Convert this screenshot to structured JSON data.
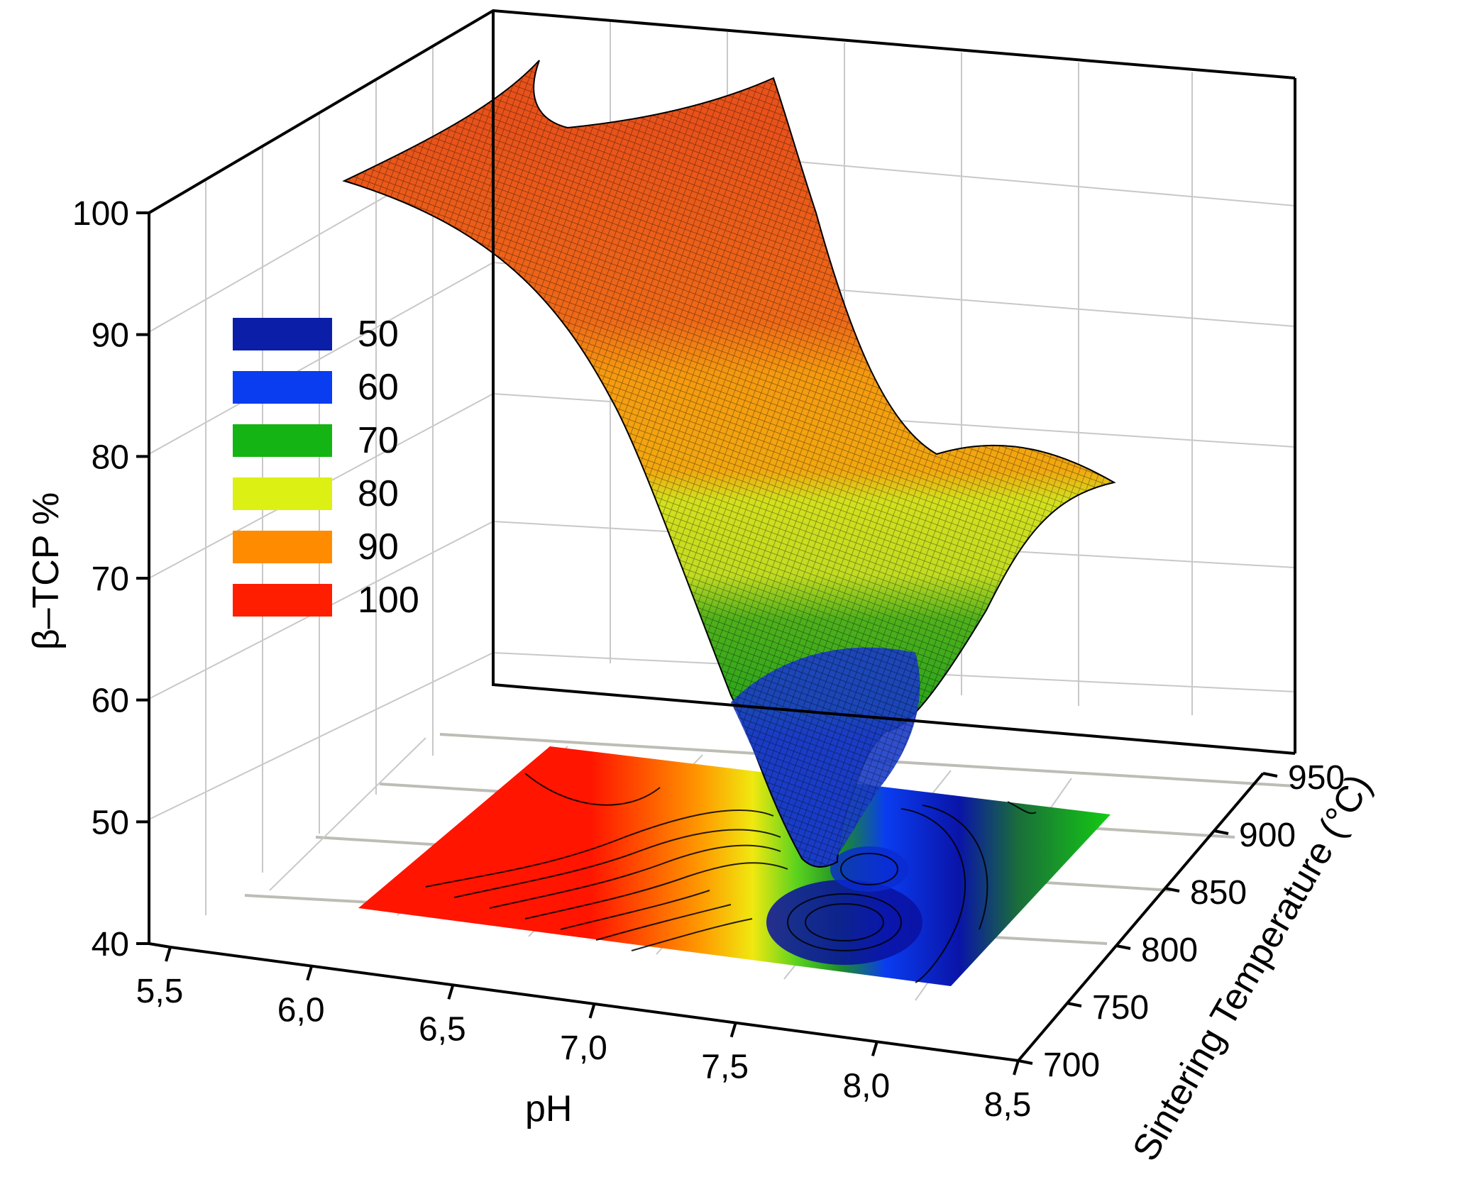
{
  "chart_data": {
    "type": "surface3d",
    "title": "",
    "xlabel": "pH",
    "ylabel": "Sintering Temperature (°C)",
    "zlabel": "β–TCP %",
    "x_ticks": [
      "5,5",
      "6,0",
      "6,5",
      "7,0",
      "7,5",
      "8,0",
      "8,5"
    ],
    "y_ticks": [
      "700",
      "750",
      "800",
      "850",
      "900",
      "950"
    ],
    "z_ticks": [
      "40",
      "50",
      "60",
      "70",
      "80",
      "90",
      "100"
    ],
    "xlim": [
      5.5,
      8.5
    ],
    "ylim": [
      700,
      950
    ],
    "zlim": [
      40,
      100
    ],
    "surface_x_range": [
      5.7,
      8.5
    ],
    "surface_y_range": [
      700,
      900
    ],
    "contour_projection_on_floor": true,
    "grid": true,
    "legend_position": "left",
    "legend": [
      {
        "label": "50",
        "color": "#0a1ea8"
      },
      {
        "label": "60",
        "color": "#0a3cf0"
      },
      {
        "label": "70",
        "color": "#14b414"
      },
      {
        "label": "80",
        "color": "#dcf014"
      },
      {
        "label": "90",
        "color": "#ff8c00"
      },
      {
        "label": "100",
        "color": "#ff1e00"
      }
    ],
    "surface_samples": [
      {
        "pH": 5.7,
        "T": 900,
        "beta_TCP": 95
      },
      {
        "pH": 5.7,
        "T": 700,
        "beta_TCP": 100
      },
      {
        "pH": 6.0,
        "T": 800,
        "beta_TCP": 97
      },
      {
        "pH": 6.5,
        "T": 800,
        "beta_TCP": 92
      },
      {
        "pH": 7.0,
        "T": 800,
        "beta_TCP": 81
      },
      {
        "pH": 7.5,
        "T": 800,
        "beta_TCP": 68
      },
      {
        "pH": 7.8,
        "T": 780,
        "beta_TCP": 42
      },
      {
        "pH": 8.0,
        "T": 750,
        "beta_TCP": 48
      },
      {
        "pH": 8.2,
        "T": 850,
        "beta_TCP": 63
      },
      {
        "pH": 8.5,
        "T": 900,
        "beta_TCP": 76
      },
      {
        "pH": 8.5,
        "T": 700,
        "beta_TCP": 70
      }
    ]
  }
}
